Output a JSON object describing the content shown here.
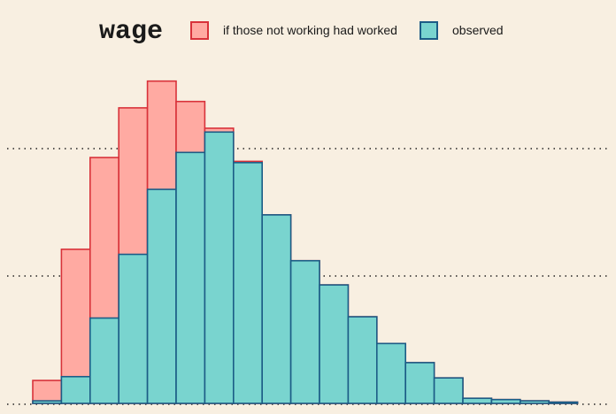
{
  "chart_data": {
    "type": "bar",
    "title": "wage",
    "xlabel": "",
    "ylabel": "",
    "grid": true,
    "ylim": [
      0,
      320
    ],
    "gridlines": [
      100,
      200
    ],
    "legend_position": "top",
    "bins": 19,
    "series": [
      {
        "name": "if those not working had worked",
        "color": "#ffaaa2",
        "edge": "#d8323a",
        "values": [
          18,
          121,
          193,
          232,
          253,
          237,
          216,
          190,
          148,
          112,
          93,
          68,
          47,
          32,
          20,
          4,
          3,
          2,
          1
        ]
      },
      {
        "name": "observed",
        "color": "#79d4cf",
        "edge": "#1c5c86",
        "values": [
          2,
          21,
          67,
          117,
          168,
          197,
          213,
          189,
          148,
          112,
          93,
          68,
          47,
          32,
          20,
          4,
          3,
          2,
          1
        ]
      }
    ]
  }
}
